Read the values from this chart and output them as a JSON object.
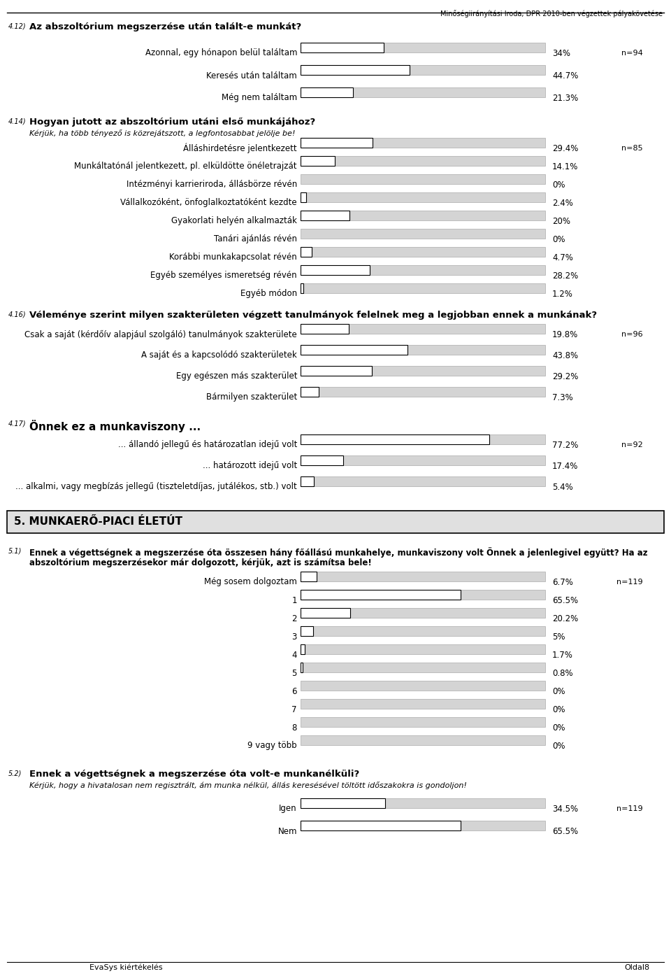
{
  "header": "Minőségiirányítási Iroda, DPR 2010-ben végzettek pályakövetése",
  "footer_left": "EvaSys kiértékelés",
  "footer_right": "Oldal8",
  "sections": [
    {
      "id": "4.12",
      "title": "Az abszoltórium megszerzése után talált-e munkát?",
      "n": "n=94",
      "items": [
        {
          "label": "Azonnal, egy hónapon belül találtam",
          "value": 34.0,
          "pct": "34%"
        },
        {
          "label": "Keresés után találtam",
          "value": 44.7,
          "pct": "44.7%"
        },
        {
          "label": "Még nem találtam",
          "value": 21.3,
          "pct": "21.3%"
        }
      ]
    },
    {
      "id": "4.14",
      "title": "Hogyan jutott az abszoltórium utáni első munkájához?",
      "subtitle": "Kérjük, ha több tényező is közrejátszott, a legfontosabbat jelölje be!",
      "n": "n=85",
      "items": [
        {
          "label": "Álláshirdetésre jelentkezett",
          "value": 29.4,
          "pct": "29.4%"
        },
        {
          "label": "Munkáltatónál jelentkezett, pl. elküldötte önéletrajzát",
          "value": 14.1,
          "pct": "14.1%"
        },
        {
          "label": "Intézményi karrieriroda, állásbörze révén",
          "value": 0.0,
          "pct": "0%"
        },
        {
          "label": "Vállalkozóként, önfoglalkoztatóként kezdte",
          "value": 2.4,
          "pct": "2.4%"
        },
        {
          "label": "Gyakorlati helyén alkalmazták",
          "value": 20.0,
          "pct": "20%"
        },
        {
          "label": "Tanári ajánlás révén",
          "value": 0.0,
          "pct": "0%"
        },
        {
          "label": "Korábbi munkakapcsolat révén",
          "value": 4.7,
          "pct": "4.7%"
        },
        {
          "label": "Egyéb személyes ismeretség révén",
          "value": 28.2,
          "pct": "28.2%"
        },
        {
          "label": "Egyéb módon",
          "value": 1.2,
          "pct": "1.2%"
        }
      ]
    },
    {
      "id": "4.16",
      "title": "Véleménye szerint milyen szakterületen végzett tanulmányok felelnek meg a legjobban ennek a munkának?",
      "n": "n=96",
      "items": [
        {
          "label": "Csak a saját (kérdőív alapjául szolgáló) tanulmányok szakterülete",
          "value": 19.8,
          "pct": "19.8%"
        },
        {
          "label": "A saját és a kapcsolódó szakterületek",
          "value": 43.8,
          "pct": "43.8%"
        },
        {
          "label": "Egy egészen más szakterület",
          "value": 29.2,
          "pct": "29.2%"
        },
        {
          "label": "Bármilyen szakterület",
          "value": 7.3,
          "pct": "7.3%"
        }
      ]
    },
    {
      "id": "4.17",
      "title": "Önnek ez a munkaviszony ...",
      "n": "n=92",
      "items": [
        {
          "label": "... állandó jellegű és határozatlan idejű volt",
          "value": 77.2,
          "pct": "77.2%"
        },
        {
          "label": "... határozott idejű volt",
          "value": 17.4,
          "pct": "17.4%"
        },
        {
          "label": "... alkalmi, vagy megbízás jellegű (tiszteletdíjas, jutálékos, stb.) volt",
          "value": 5.4,
          "pct": "5.4%"
        }
      ]
    },
    {
      "id": "section5",
      "box_title": "5. MUNKAERŐ-PIACI ÉLETÚT"
    },
    {
      "id": "5.1",
      "title_line1": "Ennek a végettségnek a megszerzése óta összesen hány főállású munkahelye, munkaviszony volt Önnek a jelenlegivel együtt? Ha az",
      "title_line2": "abszoltórium megszerzésekor már dolgozott, kérjük, azt is számítsa bele!",
      "n": "n=119",
      "items": [
        {
          "label": "Még sosem dolgoztam",
          "value": 6.7,
          "pct": "6.7%"
        },
        {
          "label": "1",
          "value": 65.5,
          "pct": "65.5%"
        },
        {
          "label": "2",
          "value": 20.2,
          "pct": "20.2%"
        },
        {
          "label": "3",
          "value": 5.0,
          "pct": "5%"
        },
        {
          "label": "4",
          "value": 1.7,
          "pct": "1.7%"
        },
        {
          "label": "5",
          "value": 0.8,
          "pct": "0.8%"
        },
        {
          "label": "6",
          "value": 0.0,
          "pct": "0%"
        },
        {
          "label": "7",
          "value": 0.0,
          "pct": "0%"
        },
        {
          "label": "8",
          "value": 0.0,
          "pct": "0%"
        },
        {
          "label": "9 vagy több",
          "value": 0.0,
          "pct": "0%"
        }
      ]
    },
    {
      "id": "5.2",
      "title": "Ennek a végettségnek a megszerzése óta volt-e munkanélküli?",
      "subtitle": "Kérjük, hogy a hivatalosan nem regisztrált, ám munka nélkül, állás keresésével töltött időszakokra is gondoljon!",
      "n": "n=119",
      "items": [
        {
          "label": "Igen",
          "value": 34.5,
          "pct": "34.5%"
        },
        {
          "label": "Nem",
          "value": 65.5,
          "pct": "65.5%"
        }
      ]
    }
  ]
}
